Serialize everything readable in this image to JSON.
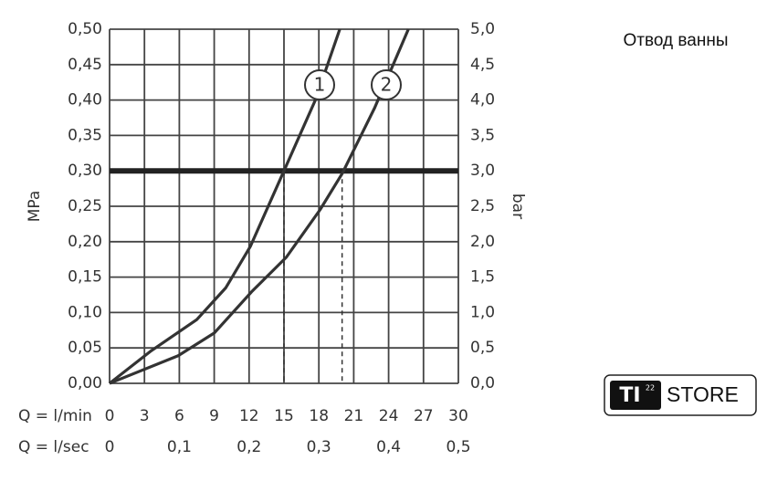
{
  "chart_data": {
    "type": "line",
    "annotation": "Отвод ванны",
    "y_label": "MPa",
    "y2_label": "bar",
    "x_label": "Q = l/min",
    "x2_label": "Q = l/sec",
    "xlim": [
      0,
      30
    ],
    "xticks": [
      0,
      3,
      6,
      9,
      12,
      15,
      18,
      21,
      24,
      27,
      30
    ],
    "x2lim": [
      0,
      0.5
    ],
    "x2ticks": [
      {
        "value": 0,
        "label": "0"
      },
      {
        "value": 0.1,
        "label": "0,1"
      },
      {
        "value": 0.2,
        "label": "0,2"
      },
      {
        "value": 0.3,
        "label": "0,3"
      },
      {
        "value": 0.4,
        "label": "0,4"
      },
      {
        "value": 0.5,
        "label": "0,5"
      }
    ],
    "ylim": [
      0,
      0.5
    ],
    "yticks": [
      {
        "value": 0,
        "label": "0,00"
      },
      {
        "value": 0.05,
        "label": "0,05"
      },
      {
        "value": 0.1,
        "label": "0,10"
      },
      {
        "value": 0.15,
        "label": "0,15"
      },
      {
        "value": 0.2,
        "label": "0,20"
      },
      {
        "value": 0.25,
        "label": "0,25"
      },
      {
        "value": 0.3,
        "label": "0,30"
      },
      {
        "value": 0.35,
        "label": "0,35"
      },
      {
        "value": 0.4,
        "label": "0,40"
      },
      {
        "value": 0.45,
        "label": "0,45"
      },
      {
        "value": 0.5,
        "label": "0,50"
      }
    ],
    "y2lim": [
      0,
      5
    ],
    "y2ticks": [
      {
        "value": 0,
        "label": "0,0"
      },
      {
        "value": 0.5,
        "label": "0,5"
      },
      {
        "value": 1,
        "label": "1,0"
      },
      {
        "value": 1.5,
        "label": "1,5"
      },
      {
        "value": 2,
        "label": "2,0"
      },
      {
        "value": 2.5,
        "label": "2,5"
      },
      {
        "value": 3,
        "label": "3,0"
      },
      {
        "value": 3.5,
        "label": "3,5"
      },
      {
        "value": 4,
        "label": "4,0"
      },
      {
        "value": 4.5,
        "label": "4,5"
      },
      {
        "value": 5,
        "label": "5,0"
      }
    ],
    "grid": true,
    "reference_y": 0.3,
    "reference_x": [
      15,
      20
    ],
    "series": [
      {
        "name": "1",
        "color": "#333333",
        "x": [
          0,
          3.5,
          7.5,
          10,
          12.1,
          15,
          17.7,
          19.8
        ],
        "values": [
          0,
          0.045,
          0.09,
          0.135,
          0.193,
          0.3,
          0.4,
          0.5
        ]
      },
      {
        "name": "2",
        "color": "#333333",
        "x": [
          0,
          5.9,
          9,
          12.2,
          15.2,
          18.1,
          20,
          22.8,
          25.7
        ],
        "values": [
          0,
          0.039,
          0.071,
          0.129,
          0.178,
          0.245,
          0.296,
          0.389,
          0.5
        ]
      }
    ]
  },
  "logo": {
    "mark": "TI",
    "superscript": "22",
    "text": "STORE"
  }
}
